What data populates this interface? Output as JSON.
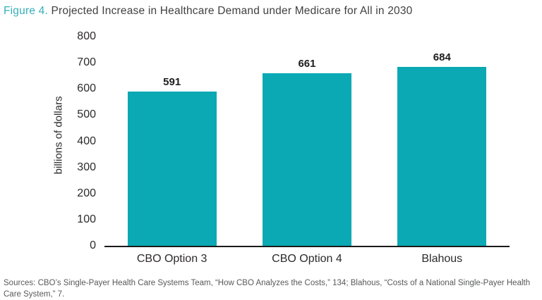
{
  "title": {
    "prefix": "Figure 4.",
    "text": " Projected Increase in Healthcare Demand under Medicare for All in 2030"
  },
  "chart_data": {
    "type": "bar",
    "categories": [
      "CBO Option 3",
      "CBO Option 4",
      "Blahous"
    ],
    "values": [
      591,
      661,
      684
    ],
    "title": "Figure 4. Projected Increase in Healthcare Demand under Medicare for All in 2030",
    "xlabel": "",
    "ylabel": "billions of dollars",
    "ylim": [
      0,
      800
    ],
    "ytick_interval": 100,
    "grid": false,
    "legend": "none",
    "bar_color": "#0aa9b4",
    "value_labels": true
  },
  "source": "Sources: CBO’s Single-Payer Health Care Systems Team, “How CBO Analyzes the Costs,” 134; Blahous, “Costs of a National Single-Payer Health Care System,” 7.",
  "colors": {
    "accent": "#35b0b8",
    "bar": "#0aa9b4",
    "title_text": "#414042",
    "axis": "#1a1a1a",
    "tick_text": "#2d2a2b",
    "source_text": "#58595b"
  }
}
